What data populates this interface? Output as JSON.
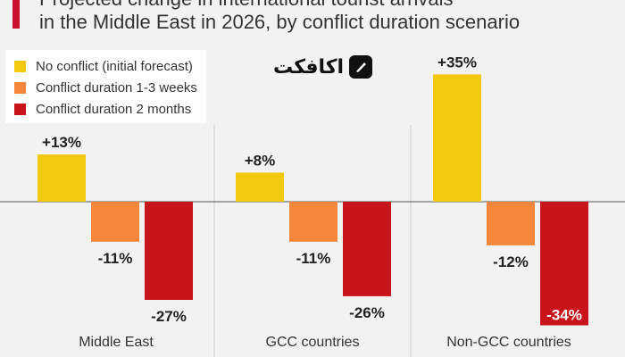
{
  "header": {
    "title_lines": [
      "Projected change in international tourist arrivals",
      "in the Middle East in 2026, by conflict duration scenario"
    ]
  },
  "logo": {
    "text": "اکافکت",
    "icon": "slash-badge-icon"
  },
  "colors": {
    "accent": "#c8102e",
    "no_conflict": "#f2c90f",
    "short_conflict": "#f4873c",
    "long_conflict": "#c8141b",
    "background": "#f2f2f2"
  },
  "chart_data": {
    "type": "bar",
    "categories": [
      "Middle East",
      "GCC countries",
      "Non-GCC countries"
    ],
    "series": [
      {
        "name": "No conflict (initial forecast)",
        "values": [
          13,
          8,
          35
        ]
      },
      {
        "name": "Conflict duration 1-3 weeks",
        "values": [
          -11,
          -11,
          -12
        ]
      },
      {
        "name": "Conflict duration 2 months",
        "values": [
          -27,
          -26,
          -34
        ]
      }
    ],
    "value_labels": [
      [
        "+13%",
        "-11%",
        "-27%"
      ],
      [
        "+8%",
        "-11%",
        "-26%"
      ],
      [
        "+35%",
        "-12%",
        "-34%"
      ]
    ],
    "unit": "%",
    "ylim": [
      -40,
      40
    ],
    "legend_position": "top-left",
    "grid": false
  }
}
